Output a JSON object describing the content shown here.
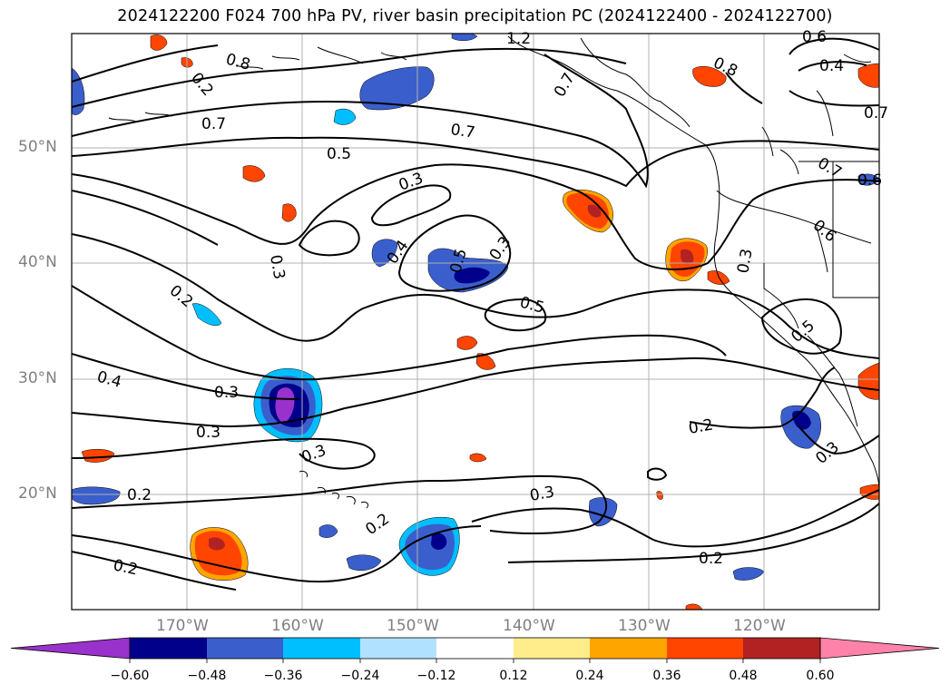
{
  "title": "2024122200 F024 700 hPa PV, river basin precipitation PC (2024122400 - 2024122700)",
  "map": {
    "projection": "PlateCarree",
    "lon_range": [
      -180,
      -110
    ],
    "lat_range": [
      10,
      60
    ],
    "grid": true,
    "latitude_labels": [
      "50°N",
      "40°N",
      "30°N",
      "20°N"
    ],
    "longitude_labels": [
      "170°W",
      "160°W",
      "150°W",
      "140°W",
      "130°W",
      "120°W"
    ]
  },
  "pv_contour_labels": [
    "1.2",
    "0.6",
    "0.4",
    "0.8",
    "0.7",
    "0.7",
    "0.8",
    "0.7",
    "0.7",
    "0.5",
    "0.7",
    "0.3",
    "0.6",
    "0.6",
    "0.3",
    "0.4",
    "0.5",
    "0.3",
    "0.3",
    "0.2",
    "0.5",
    "0.5",
    "0.4",
    "0.3",
    "0.3",
    "0.3",
    "0.2",
    "0.3",
    "0.2",
    "0.3",
    "0.2",
    "0.2",
    "0.2",
    "0.2"
  ],
  "colorbar": {
    "levels": [
      "−0.60",
      "−0.48",
      "−0.36",
      "−0.24",
      "−0.12",
      "0.12",
      "0.24",
      "0.36",
      "0.48",
      "0.60"
    ],
    "colors": [
      "#9932cc",
      "#00008b",
      "#3a5fcd",
      "#00bfff",
      "#b0e2ff",
      "#ffffff",
      "#ffec8b",
      "#ffa500",
      "#ff4500",
      "#b22222",
      "#ff82ab"
    ],
    "extend": "both"
  },
  "colors": {
    "contour": "#000000",
    "coast": "#000000",
    "grid": "#b0b0b0",
    "axis_label": "#808080"
  }
}
